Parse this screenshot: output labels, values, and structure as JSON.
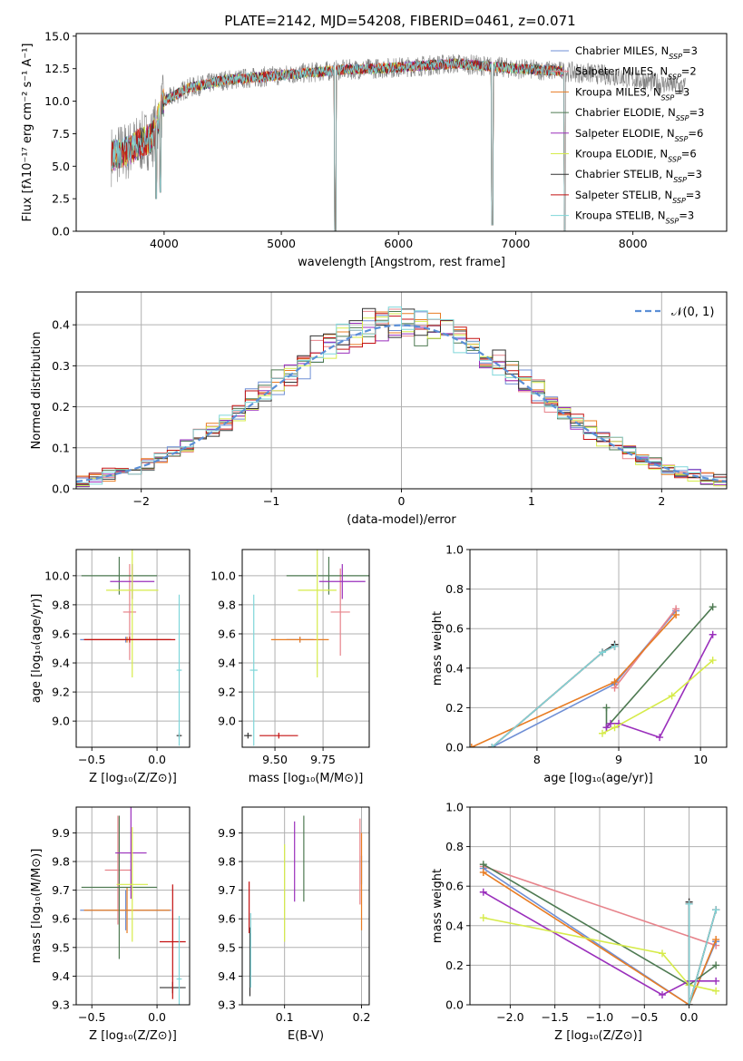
{
  "title": "PLATE=2142, MJD=54208, FIBERID=0461, z=0.071",
  "colors": {
    "Chabrier MILES": "#6f8fd5",
    "Salpeter MILES": "#e7838b",
    "Kroupa MILES": "#e87c23",
    "Chabrier ELODIE": "#4e7a52",
    "Salpeter ELODIE": "#9a2fbc",
    "Kroupa ELODIE": "#d6eb4a",
    "Chabrier STELIB": "#333333",
    "Salpeter STELIB": "#c41010",
    "Kroupa STELIB": "#7fd6d9",
    "data": "#808080",
    "gaussian": "#5b8fd6",
    "grid": "#b0b0b0"
  },
  "chart_data": [
    {
      "id": "spectrum",
      "type": "line",
      "title": "PLATE=2142, MJD=54208, FIBERID=0461, z=0.071",
      "xlabel": "wavelength [Angstrom, rest frame]",
      "ylabel": "Flux [fλ10⁻¹⁷ erg cm⁻² s⁻¹ A⁻¹]",
      "xlim": [
        3250,
        8800
      ],
      "ylim": [
        0,
        15.2
      ],
      "xticks": [
        4000,
        5000,
        6000,
        7000,
        8000
      ],
      "yticks": [
        0.0,
        2.5,
        5.0,
        7.5,
        10.0,
        12.5,
        15.0
      ],
      "legend_position": "right",
      "legend": [
        {
          "base": "Chabrier MILES, N",
          "sub": "SSP",
          "tail": "=3"
        },
        {
          "base": "Salpeter MILES, N",
          "sub": "SSP",
          "tail": "=2"
        },
        {
          "base": "Kroupa MILES, N",
          "sub": "SSP",
          "tail": "=3"
        },
        {
          "base": "Chabrier ELODIE, N",
          "sub": "SSP",
          "tail": "=3"
        },
        {
          "base": "Salpeter ELODIE, N",
          "sub": "SSP",
          "tail": "=6"
        },
        {
          "base": "Kroupa ELODIE, N",
          "sub": "SSP",
          "tail": "=6"
        },
        {
          "base": "Chabrier STELIB, N",
          "sub": "SSP",
          "tail": "=3"
        },
        {
          "base": "Salpeter STELIB, N",
          "sub": "SSP",
          "tail": "=3"
        },
        {
          "base": "Kroupa STELIB, N",
          "sub": "SSP",
          "tail": "=3"
        }
      ],
      "continuum": [
        [
          3550,
          5.8
        ],
        [
          3700,
          6.2
        ],
        [
          3800,
          6.8
        ],
        [
          3900,
          7.2
        ],
        [
          4000,
          10.0
        ],
        [
          4200,
          11.0
        ],
        [
          4500,
          11.6
        ],
        [
          5000,
          12.0
        ],
        [
          5500,
          12.4
        ],
        [
          6000,
          12.6
        ],
        [
          6500,
          12.9
        ],
        [
          7000,
          12.5
        ],
        [
          7400,
          12.3
        ],
        [
          7800,
          12.0
        ],
        [
          8200,
          11.4
        ],
        [
          8450,
          11.1
        ]
      ],
      "model_range": [
        3550,
        7420
      ],
      "data_range": [
        3550,
        8450
      ],
      "dips": [
        [
          3933,
          2.5
        ],
        [
          3968,
          3.0
        ],
        [
          5460,
          0.0
        ],
        [
          6800,
          0.5
        ],
        [
          7420,
          0.0
        ]
      ]
    },
    {
      "id": "residuals",
      "type": "line",
      "xlabel": "(data-model)/error",
      "ylabel": "Normed distribution",
      "xlim": [
        -2.5,
        2.5
      ],
      "ylim": [
        0,
        0.48
      ],
      "xticks": [
        -2,
        -1,
        0,
        1,
        2
      ],
      "yticks": [
        0.0,
        0.1,
        0.2,
        0.3,
        0.4
      ],
      "legend_label": "𝒩(0, 1)",
      "legend_position": "top-right",
      "bin_width": 0.1
    },
    {
      "id": "age-vs-Z",
      "type": "scatter",
      "xlabel": "Z [log₁₀(Z/Z⊙)]",
      "ylabel": "age  [log₁₀(age/yr)]",
      "xlim": [
        -0.62,
        0.25
      ],
      "ylim": [
        8.82,
        10.18
      ],
      "xticks": [
        -0.5,
        0.0
      ],
      "yticks": [
        9.0,
        9.2,
        9.4,
        9.6,
        9.8,
        10.0
      ],
      "points": [
        {
          "lib": "Chabrier MILES",
          "x": -0.24,
          "xerr": 0.35,
          "y": 9.56,
          "yerr": 0.02
        },
        {
          "lib": "Salpeter MILES",
          "x": -0.21,
          "xerr": 0.05,
          "y": 9.75,
          "yerr": 0.33
        },
        {
          "lib": "Kroupa MILES",
          "x": -0.23,
          "xerr": 0.33,
          "y": 9.56,
          "yerr": 0.02
        },
        {
          "lib": "Chabrier ELODIE",
          "x": -0.29,
          "xerr": 0.29,
          "y": 10.0,
          "yerr": 0.13
        },
        {
          "lib": "Salpeter ELODIE",
          "x": -0.19,
          "xerr": 0.17,
          "y": 9.96,
          "yerr": 0.12
        },
        {
          "lib": "Kroupa ELODIE",
          "x": -0.19,
          "xerr": 0.2,
          "y": 9.9,
          "yerr": 0.6
        },
        {
          "lib": "Chabrier STELIB",
          "x": 0.17,
          "xerr": 0.02,
          "y": 8.9,
          "yerr": 0.02
        },
        {
          "lib": "Salpeter STELIB",
          "x": -0.21,
          "xerr": 0.35,
          "y": 9.56,
          "yerr": 0.02
        },
        {
          "lib": "Kroupa STELIB",
          "x": 0.17,
          "xerr": 0.02,
          "y": 9.35,
          "yerr": 0.52
        }
      ]
    },
    {
      "id": "age-vs-mass",
      "type": "scatter",
      "xlabel": "mass [log₁₀(M/M⊙)]",
      "xlim": [
        9.33,
        9.99
      ],
      "ylim": [
        8.82,
        10.18
      ],
      "xticks": [
        9.5,
        9.75
      ],
      "yticks": [
        9.0,
        9.2,
        9.4,
        9.6,
        9.8,
        10.0
      ],
      "points": [
        {
          "lib": "Chabrier MILES",
          "x": 9.63,
          "xerr": 0.07,
          "y": 9.56,
          "yerr": 0.02
        },
        {
          "lib": "Salpeter MILES",
          "x": 9.84,
          "xerr": 0.05,
          "y": 9.75,
          "yerr": 0.3
        },
        {
          "lib": "Kroupa MILES",
          "x": 9.63,
          "xerr": 0.15,
          "y": 9.56,
          "yerr": 0.02
        },
        {
          "lib": "Chabrier ELODIE",
          "x": 9.78,
          "xerr": 0.22,
          "y": 10.0,
          "yerr": 0.13
        },
        {
          "lib": "Salpeter ELODIE",
          "x": 9.85,
          "xerr": 0.12,
          "y": 9.96,
          "yerr": 0.12
        },
        {
          "lib": "Kroupa ELODIE",
          "x": 9.72,
          "xerr": 0.1,
          "y": 9.9,
          "yerr": 0.6
        },
        {
          "lib": "Chabrier STELIB",
          "x": 9.36,
          "xerr": 0.02,
          "y": 8.9,
          "yerr": 0.02
        },
        {
          "lib": "Salpeter STELIB",
          "x": 9.52,
          "xerr": 0.1,
          "y": 8.9,
          "yerr": 0.02
        },
        {
          "lib": "Kroupa STELIB",
          "x": 9.39,
          "xerr": 0.02,
          "y": 9.35,
          "yerr": 0.52
        }
      ]
    },
    {
      "id": "weight-vs-age",
      "type": "line",
      "xlabel": "age  [log₁₀(age/yr)]",
      "ylabel": "mass weight",
      "xlim": [
        7.18,
        10.32
      ],
      "ylim": [
        0.0,
        1.0
      ],
      "xticks": [
        8,
        9,
        10
      ],
      "yticks": [
        0.0,
        0.2,
        0.4,
        0.6,
        0.8,
        1.0
      ],
      "series": [
        {
          "lib": "Chabrier MILES",
          "points": [
            [
              7.45,
              0.0
            ],
            [
              8.95,
              0.32
            ],
            [
              9.7,
              0.69
            ]
          ]
        },
        {
          "lib": "Salpeter MILES",
          "points": [
            [
              8.95,
              0.3
            ],
            [
              9.7,
              0.7
            ]
          ]
        },
        {
          "lib": "Kroupa MILES",
          "points": [
            [
              7.2,
              0.0
            ],
            [
              8.95,
              0.33
            ],
            [
              9.7,
              0.67
            ]
          ]
        },
        {
          "lib": "Chabrier ELODIE",
          "points": [
            [
              8.85,
              0.2
            ],
            [
              8.85,
              0.1
            ],
            [
              10.15,
              0.71
            ]
          ]
        },
        {
          "lib": "Salpeter ELODIE",
          "points": [
            [
              8.85,
              0.1
            ],
            [
              8.9,
              0.12
            ],
            [
              9.0,
              0.12
            ],
            [
              9.5,
              0.05
            ],
            [
              10.15,
              0.57
            ]
          ]
        },
        {
          "lib": "Kroupa ELODIE",
          "points": [
            [
              8.8,
              0.07
            ],
            [
              8.95,
              0.1
            ],
            [
              9.65,
              0.26
            ],
            [
              10.15,
              0.44
            ]
          ]
        },
        {
          "lib": "Chabrier STELIB",
          "points": [
            [
              7.45,
              0.0
            ],
            [
              8.8,
              0.48
            ],
            [
              8.95,
              0.52
            ]
          ]
        },
        {
          "lib": "Salpeter STELIB",
          "points": [
            [
              7.45,
              0.0
            ],
            [
              8.8,
              0.48
            ],
            [
              8.95,
              0.51
            ]
          ]
        },
        {
          "lib": "Kroupa STELIB",
          "points": [
            [
              7.45,
              0.0
            ],
            [
              8.8,
              0.48
            ],
            [
              8.95,
              0.51
            ]
          ]
        }
      ]
    },
    {
      "id": "mass-vs-Z",
      "type": "scatter",
      "xlabel": "Z [log₁₀(Z/Z⊙)]",
      "ylabel": "mass [log₁₀(M/M⊙)]",
      "xlim": [
        -0.62,
        0.25
      ],
      "ylim": [
        9.3,
        9.99
      ],
      "xticks": [
        -0.5,
        0.0
      ],
      "yticks": [
        9.3,
        9.4,
        9.5,
        9.6,
        9.7,
        9.8,
        9.9
      ],
      "points": [
        {
          "lib": "Chabrier MILES",
          "x": -0.24,
          "xerr": 0.35,
          "y": 9.63,
          "yerr": 0.07
        },
        {
          "lib": "Salpeter MILES",
          "x": -0.3,
          "xerr": 0.1,
          "y": 9.77,
          "yerr": 0.19
        },
        {
          "lib": "Kroupa MILES",
          "x": -0.23,
          "xerr": 0.33,
          "y": 9.63,
          "yerr": 0.08
        },
        {
          "lib": "Chabrier ELODIE",
          "x": -0.29,
          "xerr": 0.29,
          "y": 9.71,
          "yerr": 0.25
        },
        {
          "lib": "Salpeter ELODIE",
          "x": -0.2,
          "xerr": 0.12,
          "y": 9.83,
          "yerr": 0.16
        },
        {
          "lib": "Kroupa ELODIE",
          "x": -0.19,
          "xerr": 0.12,
          "y": 9.72,
          "yerr": 0.2
        },
        {
          "lib": "Chabrier STELIB",
          "x": 0.12,
          "xerr": 0.1,
          "y": 9.36,
          "yerr": 0.02
        },
        {
          "lib": "Salpeter STELIB",
          "x": 0.12,
          "xerr": 0.1,
          "y": 9.52,
          "yerr": 0.2
        },
        {
          "lib": "Kroupa STELIB",
          "x": 0.17,
          "xerr": 0.02,
          "y": 9.39,
          "yerr": 0.22
        }
      ]
    },
    {
      "id": "mass-vs-ebv",
      "type": "scatter",
      "xlabel": "E(B-V)",
      "xlim": [
        0.045,
        0.21
      ],
      "ylim": [
        9.3,
        9.99
      ],
      "xticks": [
        0.1,
        0.2
      ],
      "yticks": [
        9.3,
        9.4,
        9.5,
        9.6,
        9.7,
        9.8,
        9.9
      ],
      "points": [
        {
          "lib": "Chabrier MILES",
          "x": 0.2,
          "xerr": 0.0,
          "y": 9.77,
          "yerr": 0.05
        },
        {
          "lib": "Salpeter MILES",
          "x": 0.198,
          "xerr": 0.0,
          "y": 9.8,
          "yerr": 0.15
        },
        {
          "lib": "Kroupa MILES",
          "x": 0.2,
          "xerr": 0.0,
          "y": 9.73,
          "yerr": 0.17
        },
        {
          "lib": "Chabrier ELODIE",
          "x": 0.125,
          "xerr": 0.0,
          "y": 9.81,
          "yerr": 0.15
        },
        {
          "lib": "Salpeter ELODIE",
          "x": 0.113,
          "xerr": 0.0,
          "y": 9.8,
          "yerr": 0.14
        },
        {
          "lib": "Kroupa ELODIE",
          "x": 0.1,
          "xerr": 0.0,
          "y": 9.69,
          "yerr": 0.17
        },
        {
          "lib": "Chabrier STELIB",
          "x": 0.055,
          "xerr": 0.0,
          "y": 9.45,
          "yerr": 0.12
        },
        {
          "lib": "Salpeter STELIB",
          "x": 0.054,
          "xerr": 0.0,
          "y": 9.64,
          "yerr": 0.09
        },
        {
          "lib": "Kroupa STELIB",
          "x": 0.056,
          "xerr": 0.0,
          "y": 9.49,
          "yerr": 0.13
        }
      ]
    },
    {
      "id": "weight-vs-Z",
      "type": "line",
      "xlabel": "Z [log₁₀(Z/Z⊙)]",
      "ylabel": "mass weight",
      "xlim": [
        -2.45,
        0.42
      ],
      "ylim": [
        0.0,
        1.0
      ],
      "xticks": [
        -2.0,
        -1.5,
        -1.0,
        -0.5,
        0.0
      ],
      "yticks": [
        0.0,
        0.2,
        0.4,
        0.6,
        0.8,
        1.0
      ],
      "series": [
        {
          "lib": "Salpeter MILES",
          "points": [
            [
              -2.3,
              0.7
            ],
            [
              0.3,
              0.3
            ]
          ]
        },
        {
          "lib": "Chabrier MILES",
          "points": [
            [
              -2.3,
              0.69
            ],
            [
              0.0,
              0.0
            ],
            [
              0.3,
              0.32
            ]
          ]
        },
        {
          "lib": "Kroupa MILES",
          "points": [
            [
              -2.3,
              0.67
            ],
            [
              0.0,
              0.0
            ],
            [
              0.3,
              0.33
            ]
          ]
        },
        {
          "lib": "Chabrier ELODIE",
          "points": [
            [
              -2.3,
              0.71
            ],
            [
              0.0,
              0.1
            ],
            [
              0.3,
              0.2
            ]
          ]
        },
        {
          "lib": "Salpeter ELODIE",
          "points": [
            [
              -2.3,
              0.57
            ],
            [
              -0.3,
              0.05
            ],
            [
              0.0,
              0.12
            ],
            [
              0.3,
              0.12
            ]
          ]
        },
        {
          "lib": "Kroupa ELODIE",
          "points": [
            [
              -2.3,
              0.44
            ],
            [
              -0.3,
              0.26
            ],
            [
              0.0,
              0.1
            ],
            [
              0.3,
              0.07
            ]
          ]
        },
        {
          "lib": "Chabrier STELIB",
          "points": [
            [
              0.0,
              0.52
            ],
            [
              0.0,
              0.0
            ],
            [
              0.3,
              0.48
            ]
          ]
        },
        {
          "lib": "Salpeter STELIB",
          "points": [
            [
              0.0,
              0.51
            ],
            [
              0.0,
              0.0
            ],
            [
              0.3,
              0.48
            ]
          ]
        },
        {
          "lib": "Kroupa STELIB",
          "points": [
            [
              0.0,
              0.51
            ],
            [
              0.0,
              0.0
            ],
            [
              0.3,
              0.48
            ]
          ]
        }
      ]
    }
  ]
}
